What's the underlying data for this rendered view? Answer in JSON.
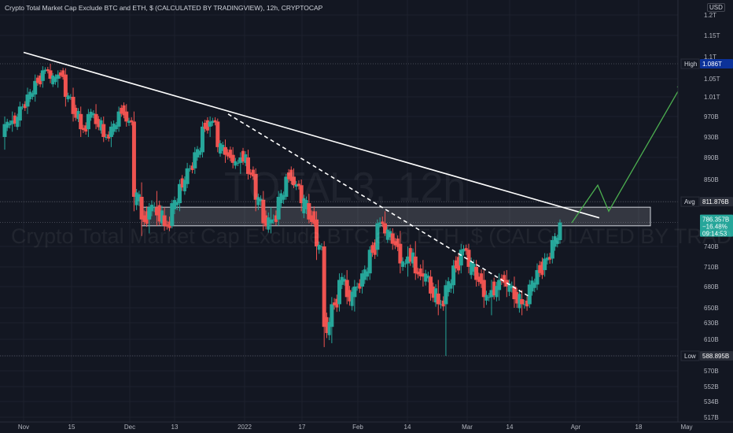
{
  "header": {
    "title": "Crypto Total Market Cap Exclude BTC and ETH, $ (CALCULATED BY TRADINGVIEW), 12h, CRYPTOCAP",
    "currency": "USD"
  },
  "watermark": {
    "symbol": "TOTAL3, 12h",
    "description": "Crypto Total Market Cap Exclude BTC and ETH, $ (CALCULATED BY TRADINGVIEW)"
  },
  "price_badges": {
    "high_label": "High",
    "high_value": "1.086T",
    "avg_label": "Avg",
    "avg_value": "811.876B",
    "last_value": "786.357B",
    "last_change": "−16.48%",
    "last_countdown": "09:14:53",
    "low_label": "Low",
    "low_value": "588.895B"
  },
  "colors": {
    "background": "#131722",
    "up": "#26a69a",
    "down": "#ef5350",
    "trendline": "#ffffff",
    "projection": "#4caf50",
    "badge_high": "#0c3299",
    "badge_last": "#26a69a"
  },
  "chart_data": {
    "type": "candlestick",
    "y_axis_ticks": [
      "1.2T",
      "1.15T",
      "1.1T",
      "1.05T",
      "1.01T",
      "970B",
      "930B",
      "890B",
      "850B",
      "811.876B",
      "740B",
      "710B",
      "680B",
      "650B",
      "630B",
      "610B",
      "588.895B",
      "570B",
      "552B",
      "534B",
      "517B"
    ],
    "x_axis_ticks": [
      "Nov",
      "15",
      "Dec",
      "13",
      "2022",
      "17",
      "Feb",
      "14",
      "Mar",
      "14",
      "Apr",
      "18",
      "May"
    ],
    "high": "1.086T",
    "avg": "811.876B",
    "last": "786.357B",
    "change": "-16.48%",
    "low": "588.895B",
    "candles_ohlc_billions": [
      [
        930,
        970,
        905,
        955
      ],
      [
        955,
        980,
        940,
        962
      ],
      [
        962,
        1000,
        950,
        990
      ],
      [
        990,
        1030,
        975,
        1015
      ],
      [
        1015,
        1060,
        1000,
        1045
      ],
      [
        1045,
        1080,
        1030,
        1070
      ],
      [
        1070,
        1086,
        1040,
        1050
      ],
      [
        1050,
        1070,
        1030,
        1060
      ],
      [
        1060,
        1075,
        990,
        1010
      ],
      [
        1010,
        1030,
        960,
        975
      ],
      [
        975,
        990,
        930,
        945
      ],
      [
        945,
        985,
        930,
        975
      ],
      [
        975,
        995,
        945,
        955
      ],
      [
        955,
        970,
        920,
        930
      ],
      [
        930,
        960,
        910,
        950
      ],
      [
        950,
        990,
        940,
        980
      ],
      [
        980,
        995,
        950,
        960
      ],
      [
        960,
        980,
        800,
        820
      ],
      [
        820,
        845,
        760,
        790
      ],
      [
        790,
        810,
        765,
        805
      ],
      [
        805,
        830,
        780,
        795
      ],
      [
        795,
        805,
        770,
        780
      ],
      [
        780,
        815,
        775,
        810
      ],
      [
        810,
        850,
        800,
        842
      ],
      [
        842,
        880,
        835,
        870
      ],
      [
        870,
        910,
        860,
        900
      ],
      [
        900,
        960,
        890,
        950
      ],
      [
        950,
        970,
        930,
        960
      ],
      [
        960,
        966,
        900,
        910
      ],
      [
        910,
        925,
        880,
        895
      ],
      [
        895,
        910,
        870,
        880
      ],
      [
        880,
        900,
        860,
        890
      ],
      [
        890,
        905,
        850,
        860
      ],
      [
        860,
        870,
        800,
        815
      ],
      [
        815,
        830,
        770,
        785
      ],
      [
        785,
        805,
        765,
        790
      ],
      [
        790,
        830,
        780,
        820
      ],
      [
        820,
        860,
        815,
        855
      ],
      [
        855,
        870,
        835,
        840
      ],
      [
        840,
        850,
        800,
        810
      ],
      [
        810,
        825,
        785,
        790
      ],
      [
        790,
        800,
        720,
        740
      ],
      [
        740,
        750,
        600,
        625
      ],
      [
        625,
        665,
        605,
        655
      ],
      [
        655,
        700,
        645,
        690
      ],
      [
        690,
        705,
        655,
        665
      ],
      [
        665,
        690,
        645,
        680
      ],
      [
        680,
        705,
        670,
        700
      ],
      [
        700,
        740,
        690,
        735
      ],
      [
        735,
        790,
        725,
        785
      ],
      [
        785,
        800,
        760,
        765
      ],
      [
        765,
        775,
        735,
        745
      ],
      [
        745,
        770,
        700,
        715
      ],
      [
        715,
        740,
        695,
        725
      ],
      [
        725,
        750,
        690,
        700
      ],
      [
        700,
        720,
        680,
        695
      ],
      [
        695,
        705,
        660,
        670
      ],
      [
        670,
        690,
        640,
        655
      ],
      [
        655,
        690,
        588.895,
        682
      ],
      [
        682,
        720,
        670,
        712
      ],
      [
        712,
        745,
        700,
        735
      ],
      [
        735,
        745,
        700,
        710
      ],
      [
        710,
        720,
        680,
        690
      ],
      [
        690,
        705,
        650,
        665
      ],
      [
        665,
        690,
        640,
        675
      ],
      [
        675,
        700,
        660,
        690
      ],
      [
        690,
        705,
        665,
        680
      ],
      [
        680,
        695,
        650,
        662
      ],
      [
        662,
        675,
        640,
        655
      ],
      [
        655,
        690,
        650,
        683
      ],
      [
        683,
        715,
        675,
        705
      ],
      [
        705,
        730,
        695,
        722
      ],
      [
        722,
        760,
        715,
        752
      ],
      [
        752,
        790,
        745,
        786.357
      ]
    ],
    "trendlines": [
      {
        "name": "main descending resistance",
        "style": "solid",
        "color": "#ffffff",
        "from": [
          "Nov 2",
          1110
        ],
        "to": [
          "Apr 8",
          792
        ]
      },
      {
        "name": "secondary descending line",
        "style": "dashed",
        "color": "#ffffff",
        "from": [
          "Dec 28",
          975
        ],
        "to": [
          "Mar 21",
          665
        ]
      }
    ],
    "zone": {
      "name": "support/resistance zone",
      "from": [
        "Dec 1",
        805
      ],
      "to": [
        "Apr 5",
        780
      ]
    },
    "projection": {
      "color": "#4caf50",
      "points": [
        [
          "Mar 27",
          786
        ],
        [
          "Apr 1",
          840
        ],
        [
          "Apr 4",
          800
        ],
        [
          "Apr 17",
          1040
        ]
      ]
    }
  }
}
